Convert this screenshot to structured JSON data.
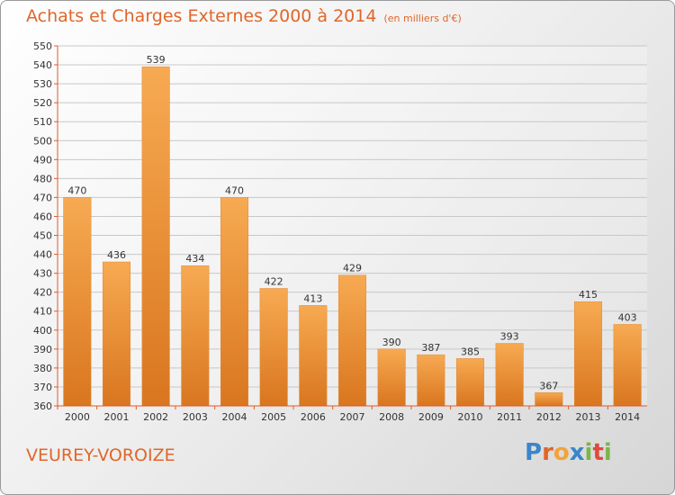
{
  "header": {
    "title": "Achats et Charges Externes 2000 à 2014",
    "unit": "(en milliers d'€)"
  },
  "location": "VEUREY-VOROIZE",
  "logo": {
    "text": "Proxiti"
  },
  "colors": {
    "bar_light": "#f7a94e",
    "bar_dark": "#d9761f",
    "title": "#e0662a",
    "axis": "#e05a2a"
  },
  "chart_data": {
    "type": "bar",
    "title": "Achats et Charges Externes 2000 à 2014",
    "subtitle": "(en milliers d'€)",
    "categories": [
      "2000",
      "2001",
      "2002",
      "2003",
      "2004",
      "2005",
      "2006",
      "2007",
      "2008",
      "2009",
      "2010",
      "2011",
      "2012",
      "2013",
      "2014"
    ],
    "values": [
      470,
      436,
      539,
      434,
      470,
      422,
      413,
      429,
      390,
      387,
      385,
      393,
      367,
      415,
      403
    ],
    "ylim": [
      360,
      550
    ],
    "yticks": [
      360,
      370,
      380,
      390,
      400,
      410,
      420,
      430,
      440,
      450,
      460,
      470,
      480,
      490,
      500,
      510,
      520,
      530,
      540,
      550
    ],
    "grid": true,
    "legend": "none"
  }
}
